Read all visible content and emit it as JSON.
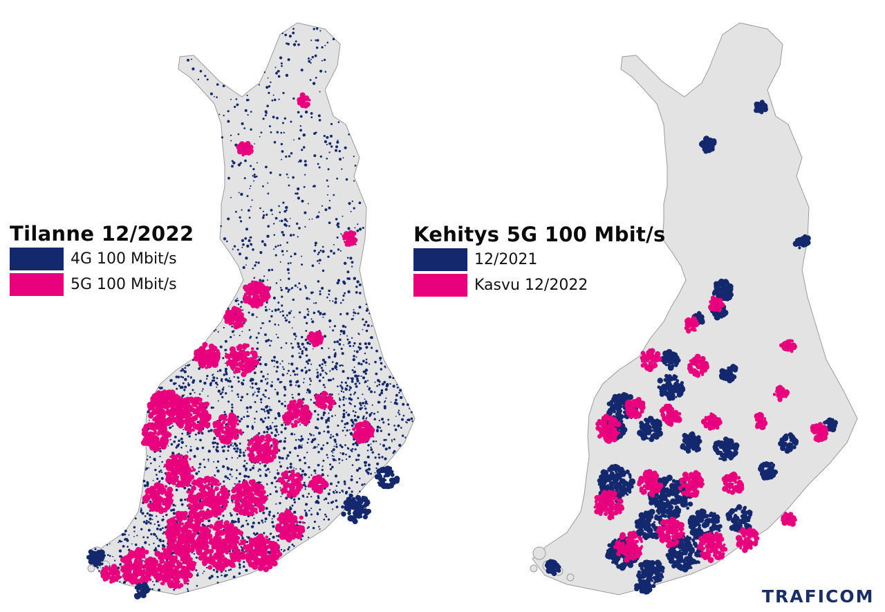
{
  "legend_left": {
    "title": "Tilanne 12/2022",
    "items": [
      {
        "label": "4G 100 Mbit/s",
        "color": "#14286e"
      },
      {
        "label": "5G 100 Mbit/s",
        "color": "#e8007d"
      }
    ]
  },
  "legend_right": {
    "title": "Kehitys 5G 100 Mbit/s",
    "items": [
      {
        "label": "12/2021",
        "color": "#14286e"
      },
      {
        "label": "Kasvu 12/2022",
        "color": "#e8007d"
      }
    ]
  },
  "logo": {
    "text": "TRAFICOM",
    "color": "#1a2e66"
  },
  "colors": {
    "land": "#e3e3e3",
    "border": "#9a9a9a",
    "navy": "#14286e",
    "magenta": "#e8007d"
  }
}
